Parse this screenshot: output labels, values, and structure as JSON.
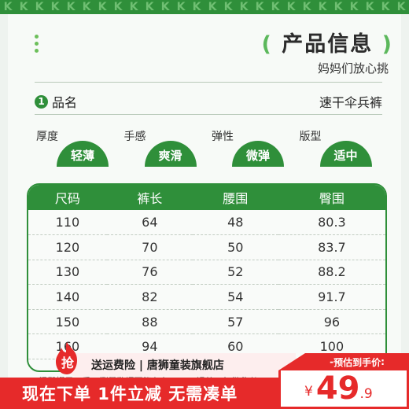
{
  "strip_glyphs": [
    "K",
    "K",
    "K",
    "K",
    "K",
    "K",
    "K",
    "K",
    "K",
    "K",
    "K",
    "K",
    "K",
    "K",
    "K",
    "K",
    "K",
    "K",
    "K",
    "K",
    "K",
    "K",
    "K",
    "K",
    "K",
    "K"
  ],
  "header": {
    "title": "产品信息",
    "paren_open": "(",
    "paren_close": ")",
    "subtitle": "妈妈们放心挑"
  },
  "product_name": {
    "index": "1",
    "label": "品名",
    "value": "速干伞兵裤"
  },
  "attributes": [
    {
      "label": "厚度",
      "value": "轻薄"
    },
    {
      "label": "手感",
      "value": "爽滑"
    },
    {
      "label": "弹性",
      "value": "微弹"
    },
    {
      "label": "版型",
      "value": "适中"
    }
  ],
  "size_table": {
    "headers": [
      "尺码",
      "裤长",
      "腰围",
      "臀围"
    ],
    "rows": [
      [
        "110",
        "64",
        "48",
        "80.3"
      ],
      [
        "120",
        "70",
        "50",
        "83.7"
      ],
      [
        "130",
        "76",
        "52",
        "88.2"
      ],
      [
        "140",
        "82",
        "54",
        "91.7"
      ],
      [
        "150",
        "88",
        "57",
        "96"
      ],
      [
        "160",
        "94",
        "60",
        "100"
      ]
    ]
  },
  "notice": "*温馨提示：手工测量数据可能存在1-3CM误差，仅供参考*",
  "promo": {
    "badge": "抢",
    "text": "送运费险 | 唐狮童装旗舰店",
    "bottom_text": "现在下单  1件立减  无需凑单"
  },
  "price": {
    "label": "预估到手价",
    "currency": "¥",
    "integer": "49",
    "decimal": ".9"
  },
  "colors": {
    "brand_green": "#2f8f3a",
    "accent_light_green": "#5cb85c",
    "promo_red": "#e62a2a",
    "background": "#eef3ef"
  }
}
